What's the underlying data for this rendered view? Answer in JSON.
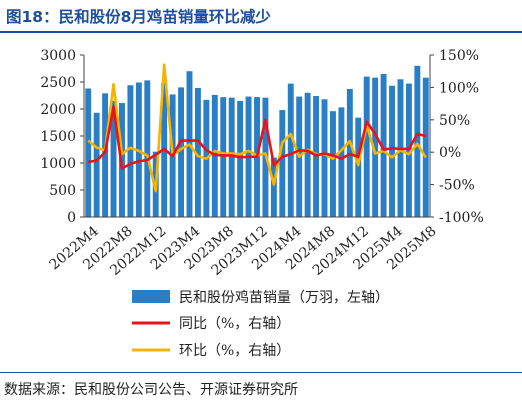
{
  "header": {
    "title": "图18：民和股份8月鸡苗销量环比减少"
  },
  "footer": {
    "source": "数据来源：民和股份公司公告、开源证券研究所"
  },
  "chart_data": {
    "type": "bar+line",
    "title": "图18：民和股份8月鸡苗销量环比减少",
    "categories": [
      "2022M4",
      "2022M5",
      "2022M6",
      "2022M7",
      "2022M8",
      "2022M9",
      "2022M10",
      "2022M11",
      "2022M12",
      "2023M1",
      "2023M2",
      "2023M3",
      "2023M4",
      "2023M5",
      "2023M6",
      "2023M7",
      "2023M8",
      "2023M9",
      "2023M10",
      "2023M11",
      "2023M12",
      "2024M1",
      "2024M2",
      "2024M3",
      "2024M4",
      "2024M5",
      "2024M6",
      "2024M7",
      "2024M8",
      "2024M9",
      "2024M10",
      "2024M11",
      "2024M12",
      "2025M1",
      "2025M2",
      "2025M3",
      "2025M4",
      "2025M5",
      "2025M6",
      "2025M7",
      "2025M8"
    ],
    "x_tick_labels": [
      "2022M4",
      "2022M8",
      "2022M12",
      "2023M4",
      "2023M8",
      "2023M12",
      "2024M4",
      "2024M8",
      "2024M12",
      "2025M4",
      "2025M8"
    ],
    "left_axis": {
      "ylim": [
        0,
        3000
      ],
      "ticks": [
        0,
        500,
        1000,
        1500,
        2000,
        2500,
        3000
      ]
    },
    "right_axis": {
      "ylim": [
        -100,
        150
      ],
      "ticks": [
        -100,
        -50,
        0,
        50,
        100,
        150
      ],
      "tick_labels": [
        "-100%",
        "-50%",
        "0%",
        "50%",
        "100%",
        "150%"
      ]
    },
    "series": [
      {
        "name": "民和股份鸡苗销量（万羽，左轴）",
        "type": "bar",
        "axis": "left",
        "color": "#2a7ec5",
        "values": [
          2380,
          1930,
          2290,
          2150,
          2110,
          2440,
          2490,
          2530,
          1210,
          2480,
          2270,
          2400,
          2700,
          2390,
          2170,
          2260,
          2220,
          2210,
          2150,
          2230,
          2220,
          2210,
          1100,
          1980,
          2470,
          2230,
          2300,
          2240,
          2180,
          1960,
          2030,
          2370,
          1840,
          2600,
          2580,
          2650,
          2430,
          2550,
          2470,
          2800,
          2580
        ]
      },
      {
        "name": "同比（%，右轴）",
        "type": "line",
        "axis": "right",
        "color": "#e8141c",
        "values": [
          -15,
          -13,
          0,
          70,
          -25,
          -18,
          -14,
          -12,
          -4,
          5,
          -6,
          18,
          18,
          18,
          3,
          -4,
          -5,
          -5,
          -8,
          -7,
          -7,
          50,
          -20,
          -7,
          -3,
          3,
          2,
          -5,
          -2,
          -5,
          -10,
          -3,
          -7,
          47,
          28,
          4,
          6,
          5,
          5,
          28,
          25
        ]
      },
      {
        "name": "环比（%，右轴）",
        "type": "line",
        "axis": "right",
        "color": "#f5b400",
        "values": [
          18,
          7,
          3,
          105,
          -3,
          7,
          2,
          -5,
          -60,
          135,
          -5,
          5,
          12,
          -6,
          -10,
          2,
          -2,
          -2,
          -3,
          2,
          -5,
          -2,
          -50,
          15,
          28,
          -7,
          4,
          -3,
          -3,
          -10,
          3,
          17,
          -20,
          42,
          -2,
          2,
          -8,
          3,
          -3,
          13,
          -8
        ]
      }
    ],
    "grid": false,
    "legend_position": "bottom"
  }
}
